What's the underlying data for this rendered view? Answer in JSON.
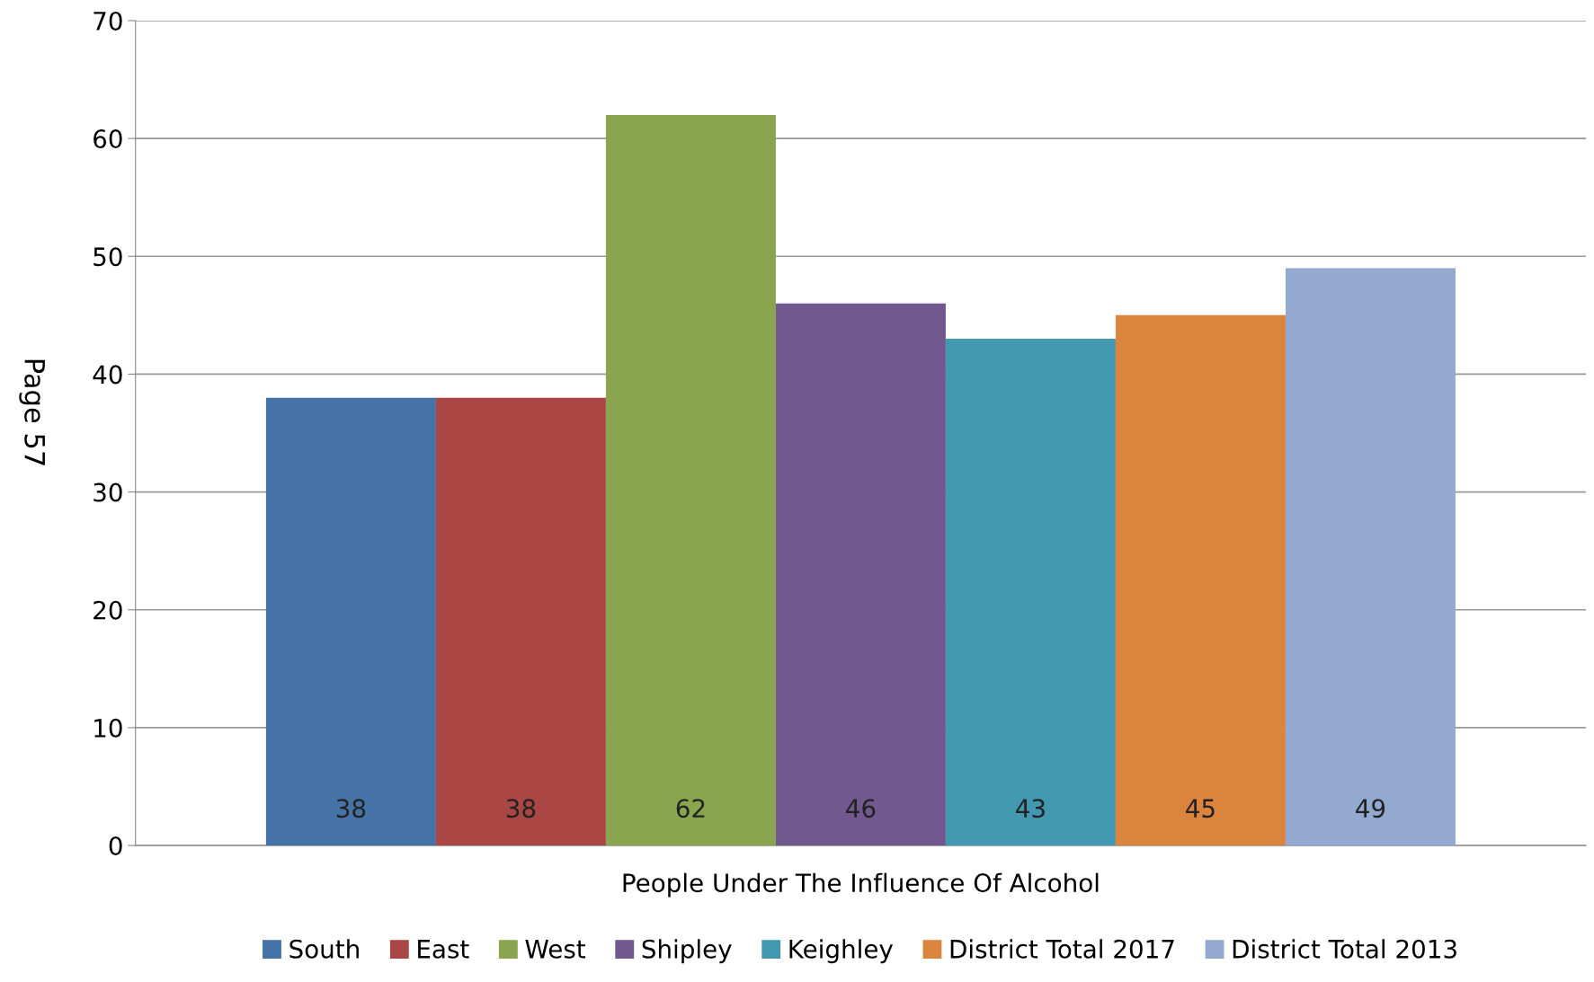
{
  "chart_data": {
    "type": "bar",
    "categories": [
      "People Under The Influence Of Alcohol"
    ],
    "series": [
      {
        "name": "South",
        "color": "#4572a7",
        "values": [
          38
        ]
      },
      {
        "name": "East",
        "color": "#aa4643",
        "values": [
          38
        ]
      },
      {
        "name": "West",
        "color": "#89a54e",
        "values": [
          62
        ]
      },
      {
        "name": "Shipley",
        "color": "#71588f",
        "values": [
          46
        ]
      },
      {
        "name": "Keighley",
        "color": "#4198af",
        "values": [
          43
        ]
      },
      {
        "name": "District Total 2017",
        "color": "#db843d",
        "values": [
          45
        ]
      },
      {
        "name": "District Total 2013",
        "color": "#93a9cf",
        "values": [
          49
        ]
      }
    ],
    "ylim": [
      0,
      70
    ],
    "yticks": [
      0,
      10,
      20,
      30,
      40,
      50,
      60,
      70
    ],
    "grid": "y",
    "legend": "bottom",
    "data_labels": true,
    "annotations": [
      "Page 57"
    ]
  }
}
